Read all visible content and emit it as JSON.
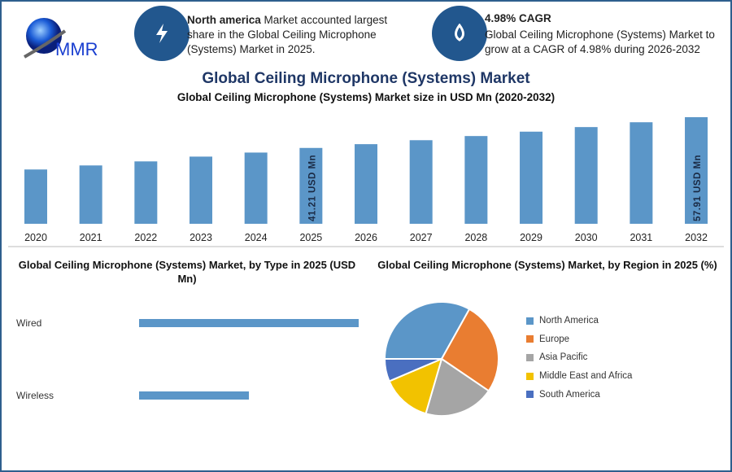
{
  "logo": {
    "text": "MMR"
  },
  "highlights": [
    {
      "icon": "lightning-icon",
      "bold": "North america",
      "text": " Market accounted largest share in the Global Ceiling Microphone (Systems) Market in 2025."
    },
    {
      "icon": "flame-icon",
      "bold": "4.98% CAGR",
      "text": "Global Ceiling Microphone (Systems) Market to grow at a CAGR of 4.98% during 2026-2032"
    }
  ],
  "main_title": "Global Ceiling Microphone (Systems) Market",
  "colors": {
    "bar": "#5b96c8",
    "accent": "#22578e",
    "title": "#1f3766"
  },
  "chart_data": [
    {
      "type": "bar",
      "title": "Global Ceiling Microphone (Systems) Market size in USD Mn (2020-2032)",
      "categories": [
        "2020",
        "2021",
        "2022",
        "2023",
        "2024",
        "2025",
        "2026",
        "2027",
        "2028",
        "2029",
        "2030",
        "2031",
        "2032"
      ],
      "values": [
        29.5,
        31.7,
        33.9,
        36.5,
        38.7,
        41.21,
        43.26,
        45.41,
        47.67,
        50.05,
        52.54,
        55.16,
        57.91
      ],
      "data_labels": {
        "2025": "41.21 USD Mn",
        "2032": "57.91 USD Mn"
      },
      "ylim": [
        0,
        60
      ],
      "grid": false
    },
    {
      "type": "bar",
      "orientation": "horizontal",
      "title": "Global Ceiling Microphone (Systems) Market, by Type in 2025 (USD Mn)",
      "categories": [
        "Wired",
        "Wireless"
      ],
      "values": [
        27.47,
        13.74
      ]
    },
    {
      "type": "pie",
      "title": "Global Ceiling Microphone (Systems) Market, by Region in 2025 (%)",
      "legend_position": "right",
      "slices": [
        {
          "label": "North America",
          "value": 33.1,
          "color": "#5b96c8"
        },
        {
          "label": "Europe",
          "value": 26.4,
          "color": "#e97d31"
        },
        {
          "label": "Asia Pacific",
          "value": 20.0,
          "color": "#a5a5a5"
        },
        {
          "label": "Middle East and Africa",
          "value": 14.1,
          "color": "#f2c200"
        },
        {
          "label": "South America",
          "value": 6.4,
          "color": "#4a6fc0"
        }
      ]
    }
  ]
}
